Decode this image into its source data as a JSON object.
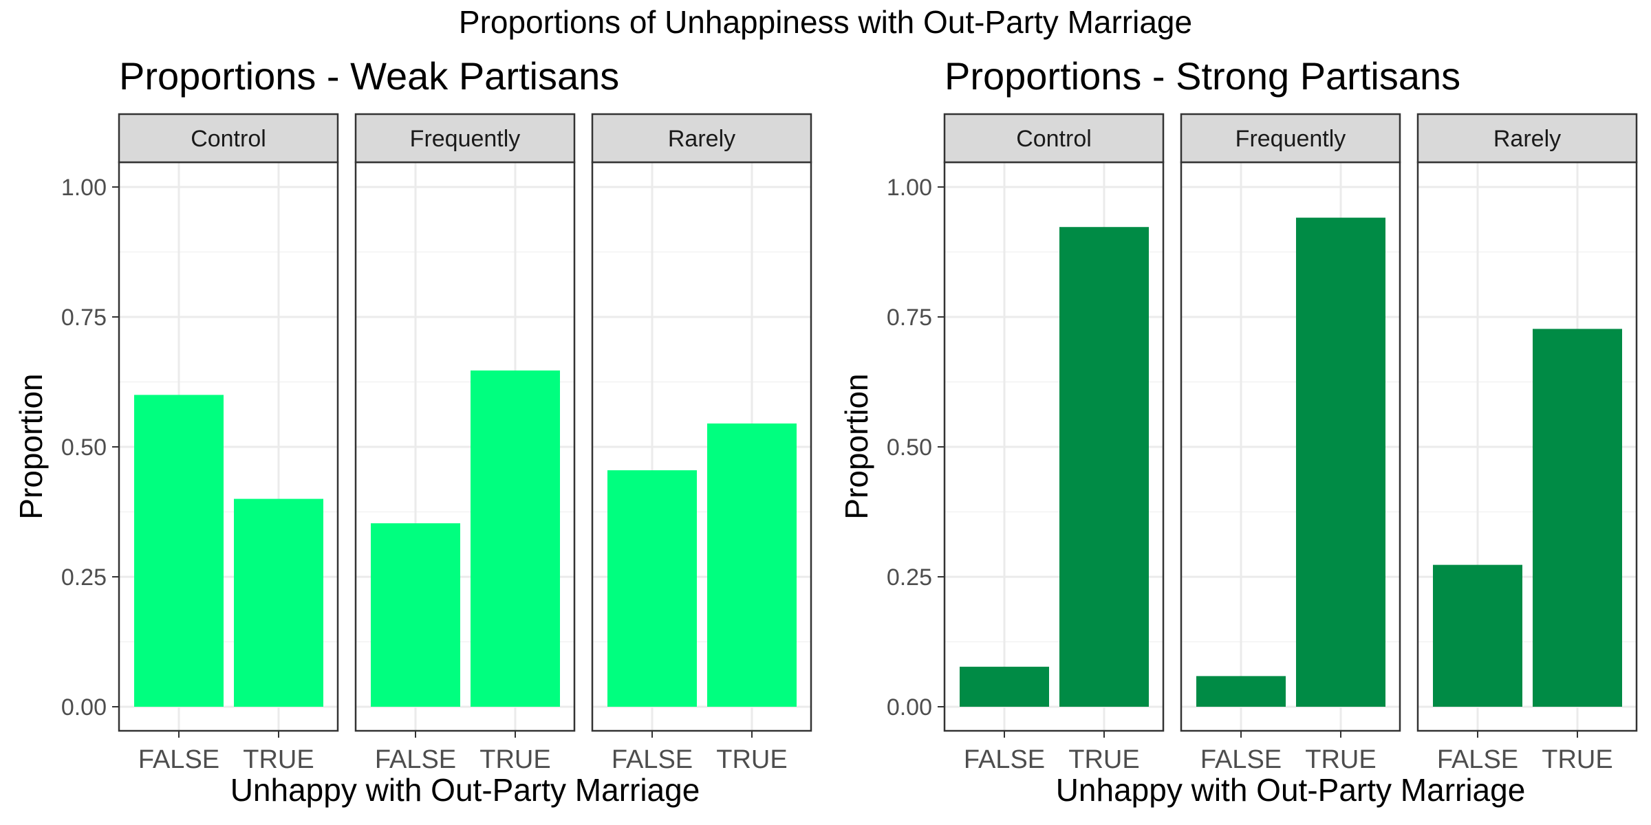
{
  "suptitle": "Proportions of Unhappiness with Out-Party Marriage",
  "chart_data": [
    {
      "type": "bar",
      "title": "Proportions - Weak Partisans",
      "xlabel": "Unhappy with Out-Party Marriage",
      "ylabel": "Proportion",
      "ylim": [
        0,
        1.0
      ],
      "yticks": [
        "0.00",
        "0.25",
        "0.50",
        "0.75",
        "1.00"
      ],
      "categories": [
        "FALSE",
        "TRUE"
      ],
      "color": "#00FF7F",
      "facets": [
        {
          "label": "Control",
          "values": [
            0.6,
            0.4
          ]
        },
        {
          "label": "Frequently",
          "values": [
            0.353,
            0.647
          ]
        },
        {
          "label": "Rarely",
          "values": [
            0.455,
            0.545
          ]
        }
      ],
      "grid": true
    },
    {
      "type": "bar",
      "title": "Proportions - Strong Partisans",
      "xlabel": "Unhappy with Out-Party Marriage",
      "ylabel": "Proportion",
      "ylim": [
        0,
        1.0
      ],
      "yticks": [
        "0.00",
        "0.25",
        "0.50",
        "0.75",
        "1.00"
      ],
      "categories": [
        "FALSE",
        "TRUE"
      ],
      "color": "#008B45",
      "facets": [
        {
          "label": "Control",
          "values": [
            0.077,
            0.923
          ]
        },
        {
          "label": "Frequently",
          "values": [
            0.059,
            0.941
          ]
        },
        {
          "label": "Rarely",
          "values": [
            0.273,
            0.727
          ]
        }
      ],
      "grid": true
    }
  ]
}
